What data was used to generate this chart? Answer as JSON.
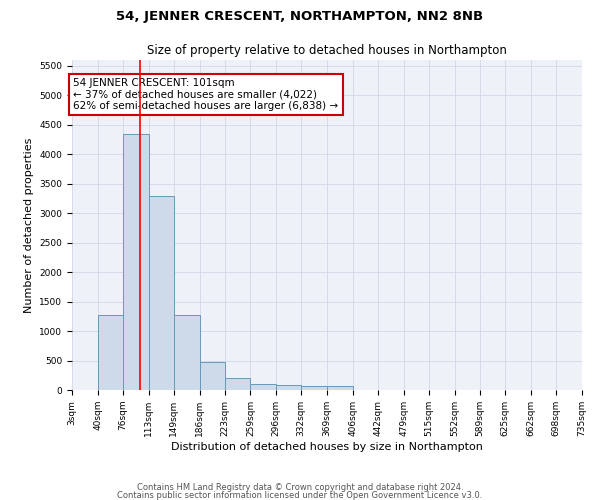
{
  "title": "54, JENNER CRESCENT, NORTHAMPTON, NN2 8NB",
  "subtitle": "Size of property relative to detached houses in Northampton",
  "xlabel": "Distribution of detached houses by size in Northampton",
  "ylabel": "Number of detached properties",
  "bar_color": "#ccdaea",
  "bar_edge_color": "#6699bb",
  "bar_edge_width": 0.7,
  "background_color": "#eef2f8",
  "grid_color": "#d0d8e8",
  "bin_edges": [
    3,
    40,
    76,
    113,
    149,
    186,
    223,
    259,
    296,
    332,
    369,
    406,
    442,
    479,
    515,
    552,
    589,
    625,
    662,
    698,
    735
  ],
  "bin_labels": [
    "3sqm",
    "40sqm",
    "76sqm",
    "113sqm",
    "149sqm",
    "186sqm",
    "223sqm",
    "259sqm",
    "296sqm",
    "332sqm",
    "369sqm",
    "406sqm",
    "442sqm",
    "479sqm",
    "515sqm",
    "552sqm",
    "589sqm",
    "625sqm",
    "662sqm",
    "698sqm",
    "735sqm"
  ],
  "bar_heights": [
    0,
    1270,
    4350,
    3300,
    1270,
    480,
    210,
    100,
    80,
    60,
    60,
    0,
    0,
    0,
    0,
    0,
    0,
    0,
    0,
    0
  ],
  "red_line_x": 101,
  "ylim": [
    0,
    5600
  ],
  "yticks": [
    0,
    500,
    1000,
    1500,
    2000,
    2500,
    3000,
    3500,
    4000,
    4500,
    5000,
    5500
  ],
  "annotation_text": "54 JENNER CRESCENT: 101sqm\n← 37% of detached houses are smaller (4,022)\n62% of semi-detached houses are larger (6,838) →",
  "annotation_box_color": "#ffffff",
  "annotation_box_edge_color": "#cc0000",
  "footer_text1": "Contains HM Land Registry data © Crown copyright and database right 2024.",
  "footer_text2": "Contains public sector information licensed under the Open Government Licence v3.0.",
  "title_fontsize": 9.5,
  "subtitle_fontsize": 8.5,
  "axis_label_fontsize": 8,
  "tick_fontsize": 6.5,
  "annotation_fontsize": 7.5,
  "footer_fontsize": 6
}
